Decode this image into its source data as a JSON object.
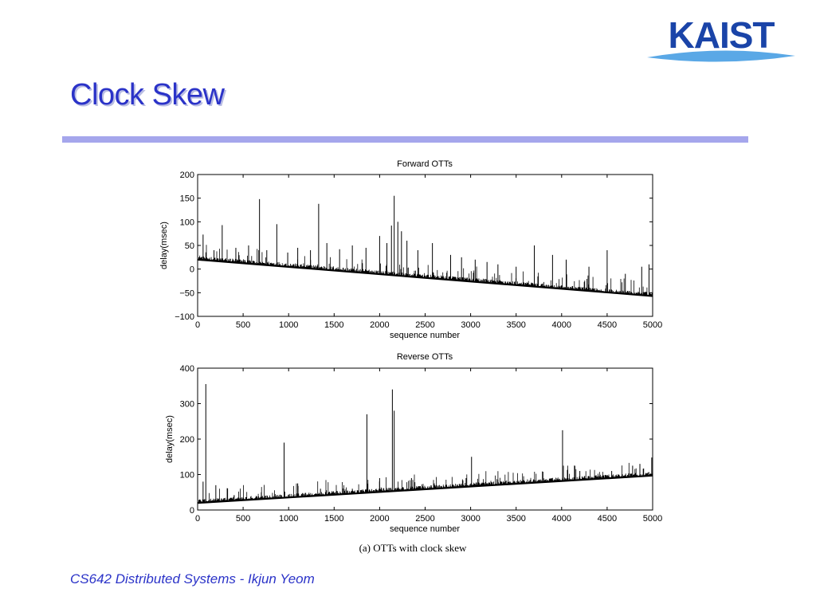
{
  "slide": {
    "title": "Clock Skew",
    "logo_text": "KAIST",
    "caption": "(a) OTTs with clock skew",
    "footer": "CS642 Distributed Systems  - Ikjun Yeom"
  },
  "colors": {
    "title": "#2b33c8",
    "rule": "#a5a6ec",
    "logo": "#1a44a8",
    "logo_swoosh": "#5aa8e6"
  },
  "chart_data": [
    {
      "type": "line",
      "title": "Forward OTTs",
      "xlabel": "sequence number",
      "ylabel": "delay(msec)",
      "xlim": [
        0,
        5000
      ],
      "ylim": [
        -100,
        200
      ],
      "xticks": [
        0,
        500,
        1000,
        1500,
        2000,
        2500,
        3000,
        3500,
        4000,
        4500,
        5000
      ],
      "yticks": [
        -100,
        -50,
        0,
        50,
        100,
        150,
        200
      ],
      "ytick_labels": [
        "−100",
        "−50",
        "0",
        "50",
        "100",
        "150",
        "200"
      ],
      "baseline": {
        "x": [
          0,
          5000
        ],
        "y": [
          20,
          -57
        ]
      },
      "spikes": [
        {
          "x": 60,
          "y": 73
        },
        {
          "x": 180,
          "y": 40
        },
        {
          "x": 270,
          "y": 93
        },
        {
          "x": 420,
          "y": 45
        },
        {
          "x": 560,
          "y": 50
        },
        {
          "x": 680,
          "y": 148
        },
        {
          "x": 760,
          "y": 40
        },
        {
          "x": 870,
          "y": 95
        },
        {
          "x": 990,
          "y": 35
        },
        {
          "x": 1100,
          "y": 45
        },
        {
          "x": 1240,
          "y": 40
        },
        {
          "x": 1330,
          "y": 138
        },
        {
          "x": 1420,
          "y": 55
        },
        {
          "x": 1560,
          "y": 42
        },
        {
          "x": 1700,
          "y": 50
        },
        {
          "x": 1850,
          "y": 45
        },
        {
          "x": 2000,
          "y": 70
        },
        {
          "x": 2080,
          "y": 55
        },
        {
          "x": 2130,
          "y": 92
        },
        {
          "x": 2160,
          "y": 155
        },
        {
          "x": 2200,
          "y": 100
        },
        {
          "x": 2240,
          "y": 80
        },
        {
          "x": 2300,
          "y": 60
        },
        {
          "x": 2420,
          "y": 40
        },
        {
          "x": 2580,
          "y": 55
        },
        {
          "x": 2780,
          "y": 30
        },
        {
          "x": 2900,
          "y": 25
        },
        {
          "x": 3050,
          "y": 20
        },
        {
          "x": 3180,
          "y": 15
        },
        {
          "x": 3300,
          "y": 10
        },
        {
          "x": 3500,
          "y": 5
        },
        {
          "x": 3700,
          "y": 50
        },
        {
          "x": 3900,
          "y": 30
        },
        {
          "x": 4050,
          "y": 20
        },
        {
          "x": 4300,
          "y": 5
        },
        {
          "x": 4500,
          "y": 40
        },
        {
          "x": 4700,
          "y": -10
        },
        {
          "x": 4880,
          "y": 5
        },
        {
          "x": 4960,
          "y": 10
        }
      ]
    },
    {
      "type": "line",
      "title": "Reverse OTTs",
      "xlabel": "sequence number",
      "ylabel": "delay(msec)",
      "xlim": [
        0,
        5000
      ],
      "ylim": [
        0,
        400
      ],
      "xticks": [
        0,
        500,
        1000,
        1500,
        2000,
        2500,
        3000,
        3500,
        4000,
        4500,
        5000
      ],
      "yticks": [
        0,
        100,
        200,
        300,
        400
      ],
      "ytick_labels": [
        "0",
        "100",
        "200",
        "300",
        "400"
      ],
      "baseline": {
        "x": [
          0,
          5000
        ],
        "y": [
          20,
          97
        ]
      },
      "spikes": [
        {
          "x": 60,
          "y": 80
        },
        {
          "x": 90,
          "y": 355
        },
        {
          "x": 200,
          "y": 70
        },
        {
          "x": 400,
          "y": 40
        },
        {
          "x": 700,
          "y": 50
        },
        {
          "x": 950,
          "y": 190
        },
        {
          "x": 1100,
          "y": 75
        },
        {
          "x": 1350,
          "y": 60
        },
        {
          "x": 1700,
          "y": 60
        },
        {
          "x": 1860,
          "y": 270
        },
        {
          "x": 2000,
          "y": 90
        },
        {
          "x": 2140,
          "y": 340
        },
        {
          "x": 2160,
          "y": 280
        },
        {
          "x": 2350,
          "y": 90
        },
        {
          "x": 2600,
          "y": 75
        },
        {
          "x": 2950,
          "y": 90
        },
        {
          "x": 3010,
          "y": 150
        },
        {
          "x": 3300,
          "y": 85
        },
        {
          "x": 3700,
          "y": 85
        },
        {
          "x": 4010,
          "y": 225
        },
        {
          "x": 4200,
          "y": 110
        },
        {
          "x": 4550,
          "y": 110
        },
        {
          "x": 4780,
          "y": 125
        },
        {
          "x": 4860,
          "y": 130
        },
        {
          "x": 4990,
          "y": 148
        }
      ]
    }
  ]
}
